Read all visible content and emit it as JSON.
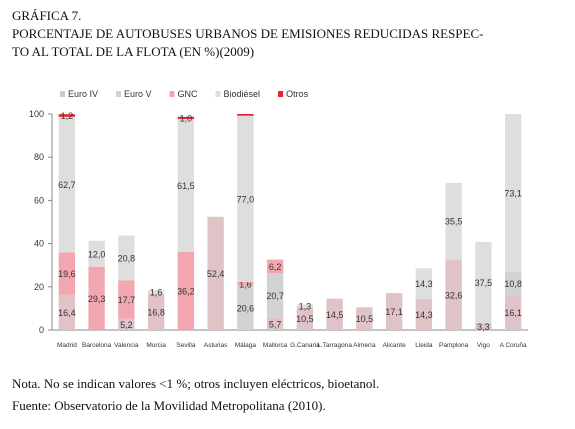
{
  "header": {
    "label": "GRÁFICA 7.",
    "title_lines": [
      "PORCENTAJE DE AUTOBUSES URBANOS DE EMISIONES REDUCIDAS RESPEC-",
      "TO AL TOTAL DE LA FLOTA (EN %)(2009)"
    ]
  },
  "chart_data": {
    "type": "stacked-bar",
    "categories": [
      "Madrid",
      "Barcelona",
      "Valencia",
      "Murcia",
      "Sevilla",
      "Asturias",
      "Málaga",
      "Mallorca",
      "G.Canaria",
      "L.Tarragona",
      "Almería",
      "Alicante",
      "Lleida",
      "Pamplona",
      "Vigo",
      "A Coruña"
    ],
    "series": [
      {
        "name": "Euro IV",
        "color": "#dfc3c7",
        "values": [
          16.4,
          null,
          5.2,
          16.8,
          null,
          52.4,
          null,
          5.7,
          10.5,
          14.5,
          10.5,
          17.1,
          14.3,
          32.6,
          3.3,
          16.1
        ],
        "value_labels": [
          "16,4",
          null,
          "5,2",
          "16,8",
          null,
          "52,4",
          null,
          "5,7",
          "10,5",
          "14,5",
          "10,5",
          "17,1",
          "14,3",
          "32,6",
          "3,3",
          "16,1"
        ]
      },
      {
        "name": "Euro V",
        "color": "#d2d2d2",
        "values": [
          null,
          null,
          null,
          null,
          null,
          null,
          20.6,
          20.7,
          null,
          null,
          null,
          null,
          null,
          null,
          null,
          10.8
        ],
        "value_labels": [
          null,
          null,
          null,
          null,
          null,
          null,
          "20,6",
          "20,7",
          null,
          null,
          null,
          null,
          null,
          null,
          null,
          "10,8"
        ]
      },
      {
        "name": "GNC",
        "color": "#f2a7b0",
        "values": [
          19.6,
          29.3,
          17.7,
          null,
          36.2,
          null,
          1.6,
          6.2,
          null,
          null,
          null,
          null,
          null,
          null,
          null,
          null
        ],
        "value_labels": [
          "19,6",
          "29,3",
          "17,7",
          null,
          "36,2",
          null,
          "1,6",
          "6,2",
          null,
          null,
          null,
          null,
          null,
          null,
          null,
          null
        ]
      },
      {
        "name": "Biodiésel",
        "color": "#dedede",
        "values": [
          62.7,
          12.0,
          20.8,
          1.6,
          61.5,
          null,
          77.0,
          null,
          1.3,
          null,
          null,
          null,
          14.3,
          35.5,
          37.5,
          73.1
        ],
        "value_labels": [
          "62,7",
          "12,0",
          "20,8",
          "1,6",
          "61,5",
          null,
          "77,0",
          null,
          "1,3",
          null,
          null,
          null,
          "14,3",
          "35,5",
          "37,5",
          "73,1"
        ]
      },
      {
        "name": "Otros",
        "color": "#e5222e",
        "values": [
          1.2,
          null,
          null,
          null,
          1.0,
          null,
          0.8,
          null,
          null,
          null,
          null,
          null,
          null,
          null,
          null,
          null
        ],
        "value_labels": [
          "1,2",
          null,
          null,
          null,
          "1,0",
          null,
          null,
          null,
          null,
          null,
          null,
          null,
          null,
          null,
          null,
          null
        ]
      }
    ],
    "ylim": [
      0,
      100
    ],
    "yticks": [
      0,
      20,
      40,
      60,
      80,
      100
    ],
    "legend": "top-left"
  },
  "notes": [
    "Nota. No se indican valores <1 %; otros incluyen eléctricos, bioetanol.",
    "Fuente: Observatorio de la Movilidad Metropolitana (2010)."
  ]
}
